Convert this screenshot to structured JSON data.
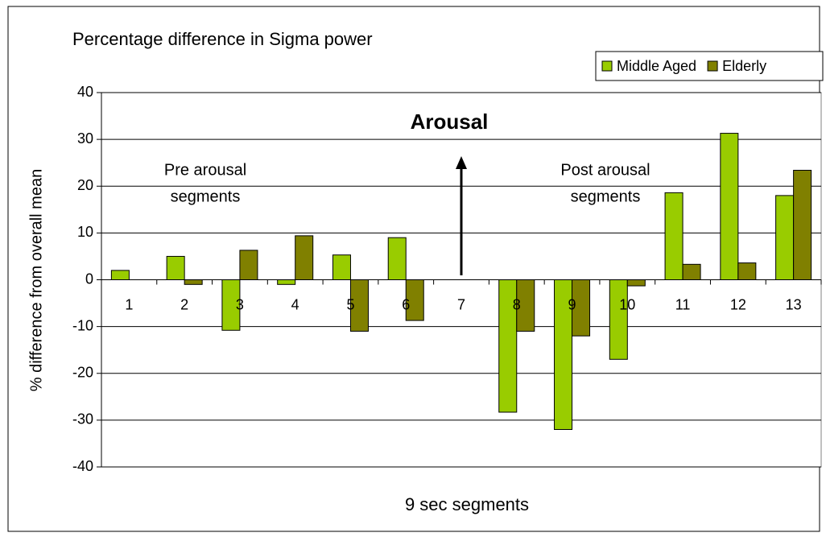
{
  "chart_data": {
    "type": "bar",
    "title": "Percentage difference in Sigma power",
    "x_label": "9 sec segments",
    "y_label": "% difference from overall mean",
    "categories": [
      "1",
      "2",
      "3",
      "4",
      "5",
      "6",
      "7",
      "8",
      "9",
      "10",
      "11",
      "12",
      "13"
    ],
    "series": [
      {
        "name": "Middle Aged",
        "color": "#99cc00",
        "values": [
          2,
          5,
          -10.8,
          -1,
          5.3,
          9,
          null,
          -28.3,
          -32,
          -17,
          18.6,
          31.3,
          18
        ]
      },
      {
        "name": "Elderly",
        "color": "#808000",
        "values": [
          null,
          -1,
          6.3,
          9.4,
          -11,
          -8.7,
          null,
          -11,
          -12,
          -1.3,
          3.3,
          3.6,
          23.4
        ]
      }
    ],
    "ylim": [
      -40,
      40
    ],
    "yticks": [
      -40,
      -30,
      -20,
      -10,
      0,
      10,
      20,
      30,
      40
    ],
    "grid": true,
    "legend": "top-right",
    "annotations": [
      "Arousal",
      "Pre arousal",
      "segments",
      "Post arousal",
      "segments"
    ]
  }
}
